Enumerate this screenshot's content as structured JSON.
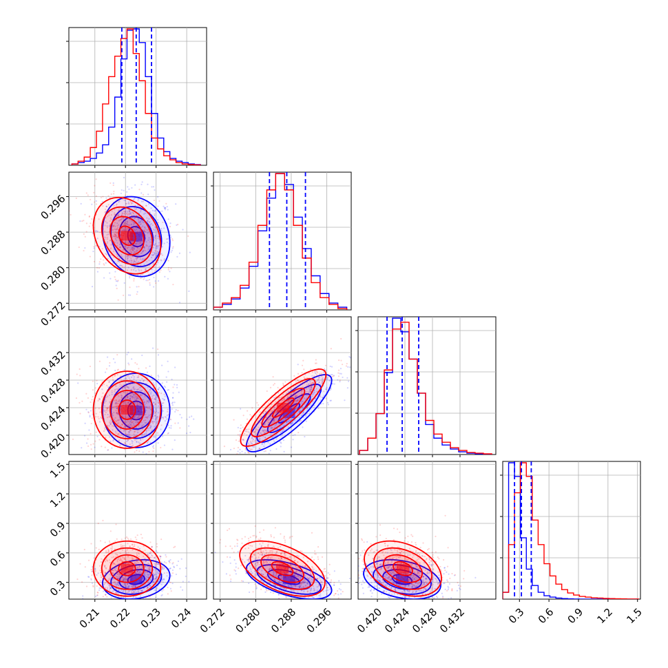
{
  "chart_data": {
    "type": "corner",
    "title": "",
    "parameter_labels": [
      "",
      "",
      "",
      ""
    ],
    "grid": true,
    "colors": {
      "series_a": "#0000ff",
      "series_b": "#ff0000",
      "quantile": "#0000ff",
      "grid": "#b0b0b0"
    },
    "series": [
      {
        "name": "",
        "color": "#0000ff",
        "role": "blue"
      },
      {
        "name": "",
        "color": "#ff0000",
        "role": "red"
      }
    ],
    "params": [
      {
        "range": [
          0.2015,
          0.2465
        ],
        "ticks": [
          0.21,
          0.22,
          0.23,
          0.24
        ],
        "tick_labels": [
          "0.21",
          "0.22",
          "0.23",
          "0.24"
        ],
        "quantiles": [
          0.2188,
          0.2235,
          0.2285
        ],
        "marginal_x": [
          0.2035,
          0.2055,
          0.2075,
          0.2095,
          0.2115,
          0.2135,
          0.2155,
          0.2175,
          0.2195,
          0.2215,
          0.2235,
          0.2255,
          0.2275,
          0.2295,
          0.2315,
          0.2335,
          0.2355,
          0.2375,
          0.2395,
          0.2415,
          0.2435
        ],
        "marginal_blue": [
          1,
          2,
          3,
          5,
          9,
          15,
          28,
          50,
          78,
          99,
          100,
          90,
          65,
          38,
          20,
          10,
          5,
          3,
          2,
          1,
          0.5
        ],
        "marginal_red": [
          1,
          3,
          6,
          13,
          25,
          45,
          65,
          80,
          93,
          100,
          82,
          62,
          38,
          20,
          12,
          7,
          4,
          2,
          1,
          0.5,
          0.3
        ]
      },
      {
        "range": [
          0.2705,
          0.3015
        ],
        "ticks": [
          0.272,
          0.28,
          0.288,
          0.296
        ],
        "tick_labels": [
          "0.272",
          "0.280",
          "0.288",
          "0.296"
        ],
        "quantiles": [
          0.2831,
          0.287,
          0.2912
        ],
        "marginal_x": [
          0.2715,
          0.2735,
          0.2755,
          0.2775,
          0.2795,
          0.2815,
          0.2835,
          0.2855,
          0.2875,
          0.2895,
          0.2915,
          0.2935,
          0.2955,
          0.2975,
          0.2995
        ],
        "marginal_blue": [
          2,
          4,
          8,
          16,
          32,
          58,
          82,
          100,
          92,
          68,
          45,
          25,
          12,
          5,
          2
        ],
        "marginal_red": [
          2,
          5,
          9,
          18,
          35,
          62,
          88,
          100,
          88,
          62,
          38,
          20,
          9,
          4,
          1
        ]
      },
      {
        "range": [
          0.4172,
          0.4372
        ],
        "ticks": [
          0.42,
          0.424,
          0.428,
          0.432
        ],
        "tick_labels": [
          "0.420",
          "0.424",
          "0.428",
          "0.432"
        ],
        "quantiles": [
          0.4214,
          0.4236,
          0.426
        ],
        "marginal_x": [
          0.418,
          0.4192,
          0.4204,
          0.4216,
          0.4228,
          0.424,
          0.4252,
          0.4264,
          0.4276,
          0.4288,
          0.43,
          0.4312,
          0.4324,
          0.4336,
          0.4348,
          0.436
        ],
        "marginal_blue": [
          3,
          12,
          30,
          60,
          100,
          90,
          70,
          45,
          22,
          12,
          7,
          4,
          2,
          1,
          0.5,
          0.3
        ],
        "marginal_red": [
          3,
          12,
          30,
          62,
          92,
          97,
          70,
          45,
          25,
          15,
          9,
          5,
          3,
          1.5,
          1,
          0.5
        ]
      },
      {
        "range": [
          0.13,
          1.53
        ],
        "ticks": [
          0.3,
          0.6,
          0.9,
          1.2,
          1.5
        ],
        "tick_labels": [
          "0.3",
          "0.6",
          "0.9",
          "1.2",
          "1.5"
        ],
        "quantiles": [
          0.25,
          0.32,
          0.42
        ],
        "marginal_x": [
          0.16,
          0.22,
          0.28,
          0.34,
          0.4,
          0.46,
          0.52,
          0.58,
          0.64,
          0.7,
          0.76,
          0.82,
          0.88,
          0.94,
          1.0,
          1.06,
          1.12,
          1.18,
          1.24,
          1.3,
          1.36,
          1.42,
          1.48
        ],
        "marginal_blue": [
          5,
          100,
          90,
          45,
          22,
          10,
          5,
          2.5,
          1.5,
          0.8,
          0.4,
          0.2,
          0.1,
          0.05,
          0,
          0,
          0,
          0,
          0,
          0,
          0,
          0,
          0
        ],
        "marginal_red": [
          5,
          40,
          78,
          100,
          90,
          58,
          40,
          26,
          17,
          11,
          7,
          4.5,
          3,
          2,
          1.5,
          1,
          0.8,
          0.5,
          0.4,
          0.3,
          0.2,
          0.1,
          0.1
        ]
      }
    ],
    "pairs": [
      {
        "x": 0,
        "y": 1,
        "blue": {
          "mean": [
            0.2235,
            0.287
          ],
          "sd": [
            0.0055,
            0.0045
          ],
          "rho": -0.15
        },
        "red": {
          "mean": [
            0.2205,
            0.2872
          ],
          "sd": [
            0.0055,
            0.0043
          ],
          "rho": -0.25
        }
      },
      {
        "x": 0,
        "y": 2,
        "blue": {
          "mean": [
            0.2235,
            0.4236
          ],
          "sd": [
            0.0055,
            0.0027
          ],
          "rho": 0.0
        },
        "red": {
          "mean": [
            0.2205,
            0.4237
          ],
          "sd": [
            0.0055,
            0.0028
          ],
          "rho": 0.0
        }
      },
      {
        "x": 1,
        "y": 2,
        "blue": {
          "mean": [
            0.2875,
            0.4232
          ],
          "sd": [
            0.0048,
            0.0028
          ],
          "rho": 0.85
        },
        "red": {
          "mean": [
            0.2862,
            0.424
          ],
          "sd": [
            0.0048,
            0.0028
          ],
          "rho": 0.85
        }
      },
      {
        "x": 0,
        "y": 3,
        "blue": {
          "mean": [
            0.2235,
            0.33
          ],
          "sd": [
            0.0055,
            0.1
          ],
          "rho": 0.2
        },
        "red": {
          "mean": [
            0.2205,
            0.44
          ],
          "sd": [
            0.0055,
            0.14
          ],
          "rho": 0.0
        }
      },
      {
        "x": 1,
        "y": 3,
        "blue": {
          "mean": [
            0.2875,
            0.33
          ],
          "sd": [
            0.0048,
            0.1
          ],
          "rho": -0.55
        },
        "red": {
          "mean": [
            0.286,
            0.44
          ],
          "sd": [
            0.0048,
            0.14
          ],
          "rho": -0.5
        }
      },
      {
        "x": 2,
        "y": 3,
        "blue": {
          "mean": [
            0.4236,
            0.33
          ],
          "sd": [
            0.0028,
            0.1
          ],
          "rho": -0.3
        },
        "red": {
          "mean": [
            0.4237,
            0.44
          ],
          "sd": [
            0.0028,
            0.14
          ],
          "rho": -0.35
        }
      }
    ],
    "contour_levels_sigma": [
      0.5,
      1.0,
      1.5,
      2.0
    ]
  }
}
